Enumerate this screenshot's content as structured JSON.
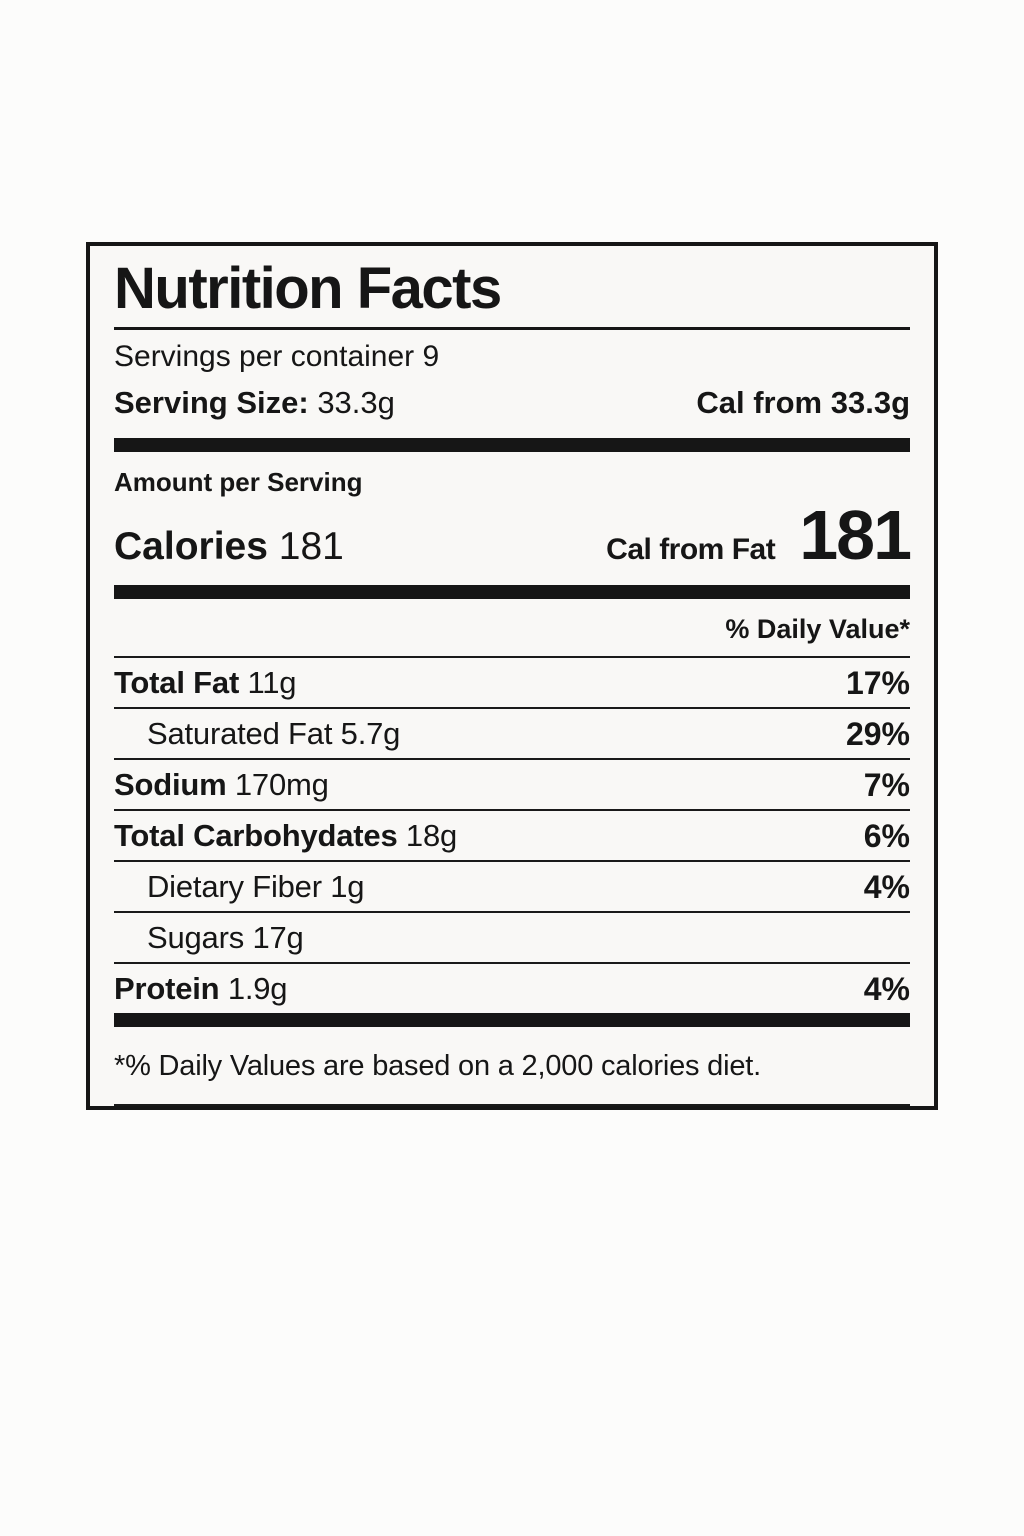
{
  "label": {
    "title": "Nutrition Facts",
    "servings_per_container": "Servings per container 9",
    "serving_size_label": "Serving Size:",
    "serving_size_value": "33.3g",
    "cal_from": "Cal from 33.3g",
    "amount_per_serving": "Amount per Serving",
    "calories_label": "Calories",
    "calories_value": "181",
    "cal_from_fat_label": "Cal from Fat",
    "cal_from_fat_value": "181",
    "daily_value_header": "% Daily Value*",
    "rows": [
      {
        "name": "Total Fat",
        "amount": "11g",
        "dv": "17%"
      },
      {
        "name": "Saturated Fat",
        "amount": "5.7g",
        "dv": "29%"
      },
      {
        "name": "Sodium",
        "amount": "170mg",
        "dv": "7%"
      },
      {
        "name": "Total Carbohydates",
        "amount": "18g",
        "dv": "6%"
      },
      {
        "name": "Dietary Fiber",
        "amount": "1g",
        "dv": "4%"
      },
      {
        "name": "Sugars",
        "amount": "17g",
        "dv": ""
      },
      {
        "name": "Protein",
        "amount": "1.9g",
        "dv": "4%"
      }
    ],
    "footnote": "*% Daily Values are based on a 2,000 calories diet.",
    "colors": {
      "text": "#161616",
      "page_background": "#fcfcfb",
      "label_background": "#f9f8f6"
    }
  }
}
